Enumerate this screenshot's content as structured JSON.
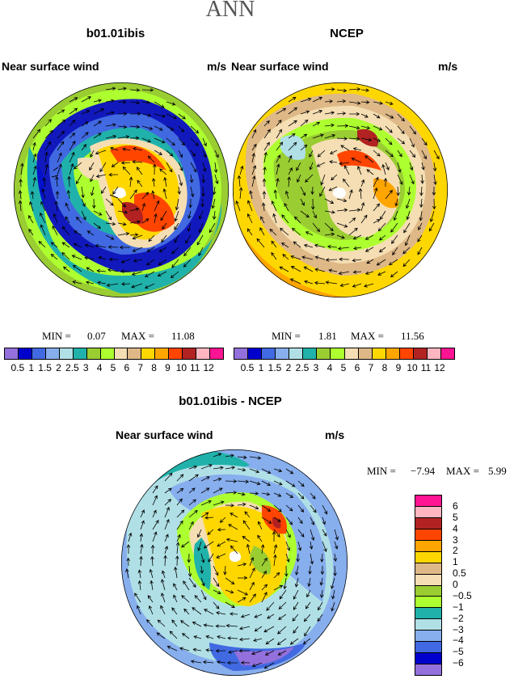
{
  "title": "ANN",
  "colors": {
    "scale1": [
      "#9370db",
      "#0000cd",
      "#4169e1",
      "#87aeed",
      "#b0e0e6",
      "#20b2aa",
      "#9acd32",
      "#adff2f",
      "#f5deb3",
      "#deb887",
      "#ffd700",
      "#ffa500",
      "#ff4500",
      "#b22222",
      "#ffb6c1",
      "#ff1493"
    ],
    "scale2": [
      "#ff1493",
      "#ffb6c1",
      "#b22222",
      "#ff4500",
      "#ffa500",
      "#ffd700",
      "#deb887",
      "#f5deb3",
      "#9acd32",
      "#adff2f",
      "#20b2aa",
      "#b0e0e6",
      "#87aeed",
      "#4169e1",
      "#0000cd",
      "#9370db"
    ]
  },
  "chart_data": [
    {
      "type": "heatmap",
      "title": "b01.01ibis",
      "variable": "Near surface wind",
      "units": "m/s",
      "min_label": "MIN =",
      "min": "0.07",
      "max_label": "MAX =",
      "max": "11.08",
      "levels": [
        "0.5",
        "1",
        "1.5",
        "2",
        "2.5",
        "3",
        "4",
        "5",
        "6",
        "7",
        "8",
        "9",
        "10",
        "11",
        "12"
      ]
    },
    {
      "type": "heatmap",
      "title": "NCEP",
      "variable": "Near surface wind",
      "units": "m/s",
      "min_label": "MIN =",
      "min": "1.81",
      "max_label": "MAX =",
      "max": "11.56",
      "levels": [
        "0.5",
        "1",
        "1.5",
        "2",
        "2.5",
        "3",
        "4",
        "5",
        "6",
        "7",
        "8",
        "9",
        "10",
        "11",
        "12"
      ]
    },
    {
      "type": "heatmap",
      "title": "b01.01ibis - NCEP",
      "variable": "Near surface wind",
      "units": "m/s",
      "min_label": "MIN =",
      "min": "−7.94",
      "max_label": "MAX =",
      "max": "5.99",
      "levels": [
        "6",
        "5",
        "4",
        "3",
        "2",
        "1",
        "0.5",
        "0",
        "−0.5",
        "−1",
        "−2",
        "−3",
        "−4",
        "−5",
        "−6"
      ]
    }
  ]
}
